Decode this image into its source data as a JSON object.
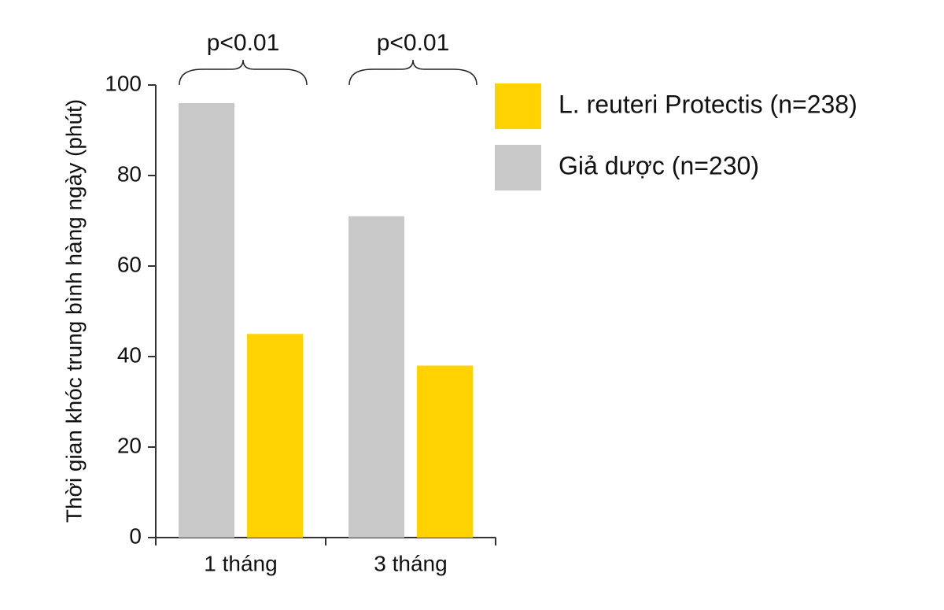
{
  "chart_data": {
    "type": "bar",
    "y_label": "Thời gian khóc trung bình hàng ngày (phút)",
    "categories": [
      "1 tháng",
      "3 tháng"
    ],
    "series": [
      {
        "name": "L. reuteri Protectis (n=238)",
        "color": "#ffd200",
        "values": [
          45,
          38
        ]
      },
      {
        "name": "Giả dược (n=230)",
        "color": "#c8c8c8",
        "values": [
          96,
          71
        ]
      }
    ],
    "annotations": [
      "p<0.01",
      "p<0.01"
    ],
    "ylim": [
      0,
      100
    ],
    "yticks": [
      0,
      20,
      40,
      60,
      80,
      100
    ],
    "grid": false,
    "legend": "top-right"
  }
}
